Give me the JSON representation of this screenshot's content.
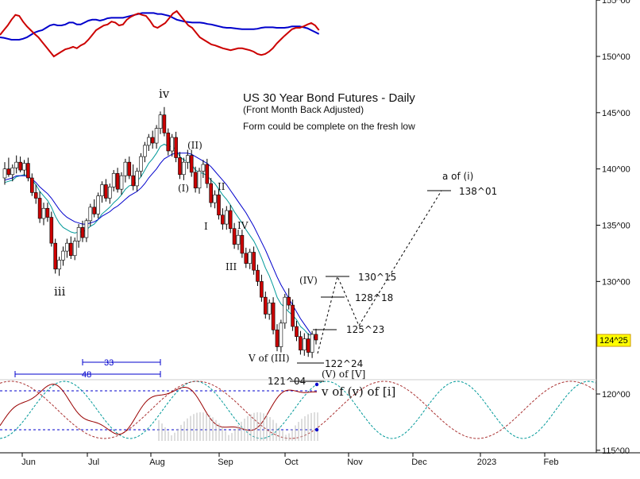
{
  "chart_data": {
    "type": "candlestick",
    "title": "US 30 Year Bond Futures - Daily",
    "subtitle": "(Front Month Back Adjusted)",
    "note": "Form could be complete on the fresh low",
    "x_labels": [
      "Jun",
      "Jul",
      "Aug",
      "Sep",
      "Oct",
      "Nov",
      "Dec",
      "2023",
      "Feb"
    ],
    "y_ticks": [
      "115^00",
      "120^00",
      "125^00",
      "130^00",
      "135^00",
      "140^00",
      "145^00",
      "150^00",
      "155^00"
    ],
    "y_range": [
      115,
      155
    ],
    "last_price": "124^25",
    "wave_labels": [
      "iv",
      "iii",
      "(II)",
      "(I)",
      "II",
      "I",
      "IV",
      "III",
      "(IV)",
      "V of (III)",
      "(V) of [V]",
      "v of (v) of [i]",
      "a of (i)"
    ],
    "projection_levels": [
      "138^01",
      "130^15",
      "128^18",
      "125^23",
      "122^24",
      "121^04"
    ],
    "cycle_labels": [
      "33",
      "48"
    ],
    "candles": [
      [
        139.2,
        140.6,
        138.6,
        140.0
      ],
      [
        140.0,
        141.0,
        139.3,
        139.5
      ],
      [
        139.5,
        140.4,
        138.9,
        140.1
      ],
      [
        140.1,
        141.2,
        139.6,
        140.6
      ],
      [
        140.6,
        141.1,
        139.7,
        139.9
      ],
      [
        139.9,
        140.8,
        139.4,
        140.5
      ],
      [
        140.5,
        141.0,
        138.9,
        139.2
      ],
      [
        139.2,
        139.6,
        137.6,
        137.9
      ],
      [
        137.9,
        138.6,
        136.9,
        137.4
      ],
      [
        137.4,
        138.0,
        135.2,
        135.6
      ],
      [
        135.6,
        137.0,
        135.0,
        136.5
      ],
      [
        136.5,
        137.0,
        135.3,
        135.7
      ],
      [
        135.7,
        136.2,
        133.1,
        133.4
      ],
      [
        133.4,
        133.8,
        130.7,
        131.1
      ],
      [
        131.1,
        132.2,
        130.5,
        131.9
      ],
      [
        131.9,
        133.1,
        131.4,
        132.7
      ],
      [
        132.7,
        133.8,
        132.1,
        133.4
      ],
      [
        133.4,
        134.0,
        132.0,
        132.3
      ],
      [
        132.3,
        133.9,
        131.9,
        133.6
      ],
      [
        133.6,
        135.1,
        133.0,
        134.8
      ],
      [
        134.8,
        135.4,
        133.5,
        133.9
      ],
      [
        133.9,
        135.6,
        133.5,
        135.4
      ],
      [
        135.4,
        136.9,
        134.9,
        136.6
      ],
      [
        136.6,
        137.3,
        135.7,
        136.0
      ],
      [
        136.0,
        137.9,
        135.6,
        137.6
      ],
      [
        137.6,
        138.9,
        137.0,
        138.6
      ],
      [
        138.6,
        139.1,
        137.1,
        137.4
      ],
      [
        137.4,
        138.7,
        136.9,
        138.4
      ],
      [
        138.4,
        139.9,
        138.0,
        139.6
      ],
      [
        139.6,
        140.1,
        137.9,
        138.2
      ],
      [
        138.2,
        139.7,
        137.7,
        139.4
      ],
      [
        139.4,
        140.9,
        138.8,
        140.6
      ],
      [
        140.6,
        141.1,
        139.1,
        139.4
      ],
      [
        139.4,
        140.4,
        138.1,
        138.5
      ],
      [
        138.5,
        140.1,
        138.0,
        139.8
      ],
      [
        139.8,
        141.4,
        139.3,
        141.1
      ],
      [
        141.1,
        142.4,
        140.6,
        142.1
      ],
      [
        142.1,
        143.1,
        141.6,
        142.8
      ],
      [
        142.8,
        143.4,
        141.8,
        142.3
      ],
      [
        142.3,
        143.9,
        141.8,
        143.6
      ],
      [
        143.6,
        145.1,
        143.1,
        144.8
      ],
      [
        144.8,
        145.5,
        142.9,
        143.2
      ],
      [
        143.2,
        143.6,
        141.2,
        141.6
      ],
      [
        141.6,
        143.1,
        141.1,
        142.8
      ],
      [
        142.8,
        143.3,
        140.6,
        141.0
      ],
      [
        141.0,
        141.5,
        139.1,
        139.5
      ],
      [
        139.5,
        141.0,
        139.0,
        140.6
      ],
      [
        140.6,
        141.7,
        140.0,
        141.2
      ],
      [
        141.2,
        141.7,
        139.3,
        139.7
      ],
      [
        139.7,
        140.2,
        137.9,
        138.3
      ],
      [
        138.3,
        140.1,
        137.8,
        139.8
      ],
      [
        139.8,
        140.8,
        139.2,
        140.4
      ],
      [
        140.4,
        140.9,
        138.3,
        138.7
      ],
      [
        138.7,
        139.2,
        136.6,
        137.0
      ],
      [
        137.0,
        138.1,
        136.5,
        137.7
      ],
      [
        137.7,
        138.2,
        135.5,
        135.9
      ],
      [
        135.9,
        136.5,
        134.6,
        135.1
      ],
      [
        135.1,
        136.7,
        134.6,
        136.3
      ],
      [
        136.3,
        136.8,
        134.3,
        134.7
      ],
      [
        134.7,
        135.2,
        132.9,
        133.3
      ],
      [
        133.3,
        134.6,
        132.8,
        134.1
      ],
      [
        134.1,
        134.6,
        132.1,
        132.5
      ],
      [
        132.5,
        133.0,
        131.2,
        131.6
      ],
      [
        131.6,
        132.9,
        131.1,
        132.6
      ],
      [
        132.6,
        133.1,
        130.6,
        131.0
      ],
      [
        131.0,
        131.5,
        129.6,
        130.0
      ],
      [
        130.0,
        130.6,
        128.2,
        128.6
      ],
      [
        128.6,
        129.1,
        126.7,
        127.1
      ],
      [
        127.1,
        128.4,
        126.6,
        128.1
      ],
      [
        128.1,
        128.6,
        125.3,
        125.7
      ],
      [
        125.7,
        126.2,
        123.8,
        124.2
      ],
      [
        124.2,
        126.6,
        123.7,
        126.3
      ],
      [
        126.3,
        128.9,
        125.8,
        128.6
      ],
      [
        128.6,
        129.4,
        127.5,
        127.9
      ],
      [
        127.9,
        128.4,
        125.6,
        126.0
      ],
      [
        126.0,
        126.5,
        124.7,
        125.1
      ],
      [
        125.1,
        125.6,
        123.5,
        123.9
      ],
      [
        123.9,
        125.4,
        123.4,
        124.9
      ],
      [
        124.9,
        125.4,
        123.3,
        123.7
      ],
      [
        123.7,
        125.6,
        123.2,
        125.3
      ],
      [
        125.3,
        125.8,
        124.4,
        124.8
      ]
    ],
    "series": [
      {
        "name": "",
        "values": [
          138.8,
          138.9,
          139.0,
          139.3,
          139.4,
          139.5,
          139.4,
          139.0,
          138.6,
          138.0,
          137.6,
          137.2,
          136.6,
          135.8,
          135.2,
          134.8,
          134.6,
          134.4,
          134.3,
          134.4,
          134.4,
          134.6,
          134.9,
          135.1,
          135.5,
          136.0,
          136.3,
          136.6,
          137.0,
          137.3,
          137.7,
          138.2,
          138.5,
          138.6,
          138.9,
          139.3,
          139.9,
          140.5,
          140.9,
          141.4,
          142.0,
          142.2,
          142.0,
          142.0,
          141.7,
          141.1,
          140.8,
          140.7,
          140.4,
          139.9,
          139.7,
          139.6,
          139.4,
          139.0,
          138.7,
          138.2,
          137.7,
          137.3,
          136.8,
          136.2,
          135.7,
          135.2,
          134.6,
          134.1,
          133.6,
          132.9,
          132.1,
          131.2,
          130.5,
          129.6,
          128.6,
          128.0,
          127.7,
          127.3,
          127.0,
          126.6,
          126.0,
          125.7,
          125.3,
          125.2,
          125.0
        ]
      },
      {
        "name": "",
        "values": [
          139.0,
          139.1,
          139.2,
          139.4,
          139.4,
          139.4,
          139.3,
          139.1,
          138.8,
          138.4,
          138.1,
          137.8,
          137.4,
          136.9,
          136.4,
          136.0,
          135.7,
          135.5,
          135.3,
          135.2,
          135.1,
          135.1,
          135.2,
          135.3,
          135.5,
          135.8,
          136.0,
          136.2,
          136.5,
          136.7,
          137.0,
          137.3,
          137.6,
          137.8,
          138.0,
          138.3,
          138.7,
          139.2,
          139.6,
          140.0,
          140.5,
          140.9,
          141.1,
          141.3,
          141.4,
          141.4,
          141.4,
          141.4,
          141.3,
          141.1,
          140.9,
          140.7,
          140.5,
          140.2,
          139.8,
          139.4,
          139.0,
          138.6,
          138.1,
          137.6,
          137.1,
          136.6,
          136.1,
          135.5,
          134.9,
          134.2,
          133.5,
          132.8,
          132.0,
          131.2,
          130.4,
          129.7,
          129.1,
          128.5,
          127.9,
          127.3,
          126.7,
          126.2,
          125.7,
          125.2,
          124.8
        ]
      }
    ],
    "projection_path": [
      [
        125.1,
        122.6
      ],
      [
        126.6,
        130.4
      ],
      [
        128.9,
        128.3
      ],
      [
        131.1,
        125.7
      ],
      [
        140.4,
        138.0
      ]
    ],
    "top_indicator": {
      "type": "line",
      "y_range": [
        0,
        100
      ],
      "series": [
        {
          "name": "",
          "color": "#0000cc",
          "values": [
            35,
            34,
            32,
            30,
            30,
            30,
            32,
            35,
            40,
            45,
            48,
            50,
            55,
            60,
            62,
            60,
            60,
            62,
            66,
            66,
            62,
            62,
            66,
            70,
            72,
            72,
            70,
            72,
            75,
            76,
            76,
            76,
            76,
            78,
            80,
            82,
            84,
            86,
            86,
            86,
            86,
            84,
            84,
            82,
            80,
            76,
            72,
            70,
            68,
            67,
            66,
            66,
            66,
            65,
            63,
            62,
            60,
            58,
            56,
            55,
            55,
            54,
            53,
            52,
            52,
            52,
            52,
            53,
            55,
            56,
            56,
            56,
            55,
            55,
            55,
            56,
            58,
            58,
            58,
            56,
            54,
            50,
            46,
            42
          ]
        },
        {
          "name": "",
          "color": "#cc0000",
          "values": [
            40,
            50,
            60,
            72,
            82,
            80,
            68,
            58,
            50,
            42,
            35,
            25,
            15,
            5,
            -5,
            0,
            5,
            10,
            12,
            15,
            12,
            18,
            22,
            30,
            40,
            50,
            55,
            60,
            62,
            68,
            66,
            60,
            62,
            72,
            78,
            82,
            85,
            82,
            80,
            70,
            58,
            55,
            60,
            65,
            75,
            85,
            90,
            80,
            70,
            60,
            55,
            45,
            35,
            30,
            25,
            20,
            18,
            15,
            12,
            10,
            8,
            10,
            12,
            12,
            10,
            8,
            5,
            0,
            -2,
            0,
            5,
            12,
            22,
            30,
            38,
            45,
            52,
            55,
            55,
            58,
            62,
            65,
            60,
            50
          ]
        }
      ]
    },
    "bottom_indicator": {
      "type": "line",
      "y_range": [
        -50,
        50
      ]
    }
  }
}
